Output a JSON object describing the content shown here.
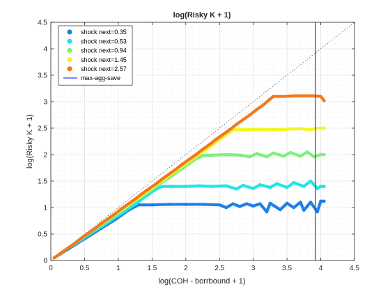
{
  "chart_data": {
    "type": "scatter",
    "title": "log(Risky K + 1)",
    "xlabel": "log(COH - borrbound + 1)",
    "ylabel": "log(Risky K + 1)",
    "xlim": [
      0,
      4.5
    ],
    "ylim": [
      0,
      4.5
    ],
    "xticks": [
      0,
      0.5,
      1,
      1.5,
      2,
      2.5,
      3,
      3.5,
      4,
      4.5
    ],
    "yticks": [
      0,
      0.5,
      1,
      1.5,
      2,
      2.5,
      3,
      3.5,
      4,
      4.5
    ],
    "xtick_labels": [
      "0",
      "0.5",
      "1",
      "1.5",
      "2",
      "2.5",
      "3",
      "3.5",
      "4",
      "4.5"
    ],
    "ytick_labels": [
      "0",
      "0.5",
      "1",
      "1.5",
      "2",
      "2.5",
      "3",
      "3.5",
      "4",
      "4.5"
    ],
    "grid": true,
    "legend_position": "top-left",
    "reference_line": {
      "type": "diagonal",
      "from": [
        0,
        0
      ],
      "to": [
        4.5,
        4.5
      ],
      "style": "dotted",
      "color": "#555555"
    },
    "vertical_line": {
      "name": "max-agg-save",
      "x": 3.92,
      "color": "#3b3bff"
    },
    "series": [
      {
        "name": "shock next=0.35",
        "color": "#1f7fe8",
        "points": [
          [
            0.05,
            0.05
          ],
          [
            0.15,
            0.13
          ],
          [
            0.25,
            0.21
          ],
          [
            0.35,
            0.29
          ],
          [
            0.45,
            0.37
          ],
          [
            0.55,
            0.45
          ],
          [
            0.65,
            0.53
          ],
          [
            0.75,
            0.61
          ],
          [
            0.85,
            0.69
          ],
          [
            0.95,
            0.77
          ],
          [
            1.05,
            0.86
          ],
          [
            1.15,
            0.95
          ],
          [
            1.25,
            1.02
          ],
          [
            1.3,
            1.05
          ],
          [
            1.5,
            1.05
          ],
          [
            1.75,
            1.06
          ],
          [
            2.0,
            1.06
          ],
          [
            2.25,
            1.06
          ],
          [
            2.5,
            1.05
          ],
          [
            2.6,
            1.0
          ],
          [
            2.7,
            1.07
          ],
          [
            2.8,
            1.02
          ],
          [
            2.9,
            1.07
          ],
          [
            3.0,
            1.03
          ],
          [
            3.1,
            1.07
          ],
          [
            3.2,
            0.92
          ],
          [
            3.25,
            1.08
          ],
          [
            3.4,
            0.96
          ],
          [
            3.5,
            1.08
          ],
          [
            3.6,
            1.0
          ],
          [
            3.7,
            1.1
          ],
          [
            3.75,
            0.95
          ],
          [
            3.85,
            1.1
          ],
          [
            3.95,
            0.92
          ],
          [
            4.0,
            1.12
          ],
          [
            4.05,
            1.12
          ]
        ]
      },
      {
        "name": "shock next=0.53",
        "color": "#22e5e5",
        "points": [
          [
            0.05,
            0.05
          ],
          [
            0.15,
            0.14
          ],
          [
            0.25,
            0.23
          ],
          [
            0.35,
            0.31
          ],
          [
            0.45,
            0.39
          ],
          [
            0.55,
            0.48
          ],
          [
            0.65,
            0.56
          ],
          [
            0.75,
            0.64
          ],
          [
            0.85,
            0.72
          ],
          [
            0.95,
            0.81
          ],
          [
            1.05,
            0.89
          ],
          [
            1.15,
            0.98
          ],
          [
            1.25,
            1.06
          ],
          [
            1.35,
            1.16
          ],
          [
            1.45,
            1.25
          ],
          [
            1.55,
            1.34
          ],
          [
            1.65,
            1.4
          ],
          [
            1.8,
            1.4
          ],
          [
            2.0,
            1.4
          ],
          [
            2.2,
            1.41
          ],
          [
            2.4,
            1.4
          ],
          [
            2.6,
            1.41
          ],
          [
            2.75,
            1.35
          ],
          [
            2.85,
            1.42
          ],
          [
            3.0,
            1.36
          ],
          [
            3.1,
            1.43
          ],
          [
            3.25,
            1.38
          ],
          [
            3.35,
            1.45
          ],
          [
            3.5,
            1.38
          ],
          [
            3.6,
            1.47
          ],
          [
            3.75,
            1.4
          ],
          [
            3.85,
            1.5
          ],
          [
            3.95,
            1.36
          ],
          [
            4.0,
            1.4
          ],
          [
            4.05,
            1.4
          ]
        ]
      },
      {
        "name": "shock next=0.94",
        "color": "#7df07d",
        "points": [
          [
            0.05,
            0.05
          ],
          [
            0.15,
            0.14
          ],
          [
            0.25,
            0.23
          ],
          [
            0.35,
            0.32
          ],
          [
            0.45,
            0.41
          ],
          [
            0.55,
            0.5
          ],
          [
            0.65,
            0.59
          ],
          [
            0.75,
            0.67
          ],
          [
            0.85,
            0.76
          ],
          [
            0.95,
            0.85
          ],
          [
            1.05,
            0.94
          ],
          [
            1.15,
            1.03
          ],
          [
            1.25,
            1.12
          ],
          [
            1.35,
            1.21
          ],
          [
            1.45,
            1.3
          ],
          [
            1.55,
            1.39
          ],
          [
            1.65,
            1.48
          ],
          [
            1.75,
            1.56
          ],
          [
            1.85,
            1.65
          ],
          [
            1.95,
            1.74
          ],
          [
            2.05,
            1.83
          ],
          [
            2.15,
            1.92
          ],
          [
            2.25,
            1.98
          ],
          [
            2.4,
            1.99
          ],
          [
            2.6,
            2.0
          ],
          [
            2.8,
            1.99
          ],
          [
            2.95,
            1.96
          ],
          [
            3.05,
            2.02
          ],
          [
            3.2,
            1.96
          ],
          [
            3.3,
            2.03
          ],
          [
            3.45,
            1.97
          ],
          [
            3.55,
            2.04
          ],
          [
            3.7,
            1.97
          ],
          [
            3.8,
            2.05
          ],
          [
            3.9,
            1.96
          ],
          [
            4.0,
            2.0
          ],
          [
            4.05,
            2.0
          ]
        ]
      },
      {
        "name": "shock next=1.45",
        "color": "#f5f51f",
        "points": [
          [
            0.05,
            0.05
          ],
          [
            0.15,
            0.14
          ],
          [
            0.25,
            0.23
          ],
          [
            0.35,
            0.32
          ],
          [
            0.45,
            0.42
          ],
          [
            0.55,
            0.51
          ],
          [
            0.65,
            0.6
          ],
          [
            0.75,
            0.69
          ],
          [
            0.85,
            0.78
          ],
          [
            0.95,
            0.87
          ],
          [
            1.05,
            0.96
          ],
          [
            1.15,
            1.05
          ],
          [
            1.25,
            1.14
          ],
          [
            1.35,
            1.23
          ],
          [
            1.45,
            1.32
          ],
          [
            1.55,
            1.42
          ],
          [
            1.65,
            1.51
          ],
          [
            1.75,
            1.6
          ],
          [
            1.85,
            1.69
          ],
          [
            1.95,
            1.78
          ],
          [
            2.05,
            1.87
          ],
          [
            2.15,
            1.96
          ],
          [
            2.25,
            2.05
          ],
          [
            2.35,
            2.14
          ],
          [
            2.45,
            2.24
          ],
          [
            2.55,
            2.33
          ],
          [
            2.65,
            2.42
          ],
          [
            2.7,
            2.47
          ],
          [
            2.9,
            2.47
          ],
          [
            3.1,
            2.48
          ],
          [
            3.3,
            2.47
          ],
          [
            3.5,
            2.48
          ],
          [
            3.7,
            2.49
          ],
          [
            3.85,
            2.47
          ],
          [
            3.95,
            2.5
          ],
          [
            4.05,
            2.5
          ]
        ]
      },
      {
        "name": "shock next=2.57",
        "color": "#f07820",
        "points": [
          [
            0.05,
            0.05
          ],
          [
            0.15,
            0.14
          ],
          [
            0.25,
            0.23
          ],
          [
            0.35,
            0.32
          ],
          [
            0.45,
            0.42
          ],
          [
            0.55,
            0.51
          ],
          [
            0.65,
            0.6
          ],
          [
            0.75,
            0.7
          ],
          [
            0.85,
            0.79
          ],
          [
            0.95,
            0.88
          ],
          [
            1.05,
            0.98
          ],
          [
            1.15,
            1.07
          ],
          [
            1.25,
            1.16
          ],
          [
            1.35,
            1.26
          ],
          [
            1.45,
            1.35
          ],
          [
            1.55,
            1.44
          ],
          [
            1.65,
            1.54
          ],
          [
            1.75,
            1.63
          ],
          [
            1.85,
            1.72
          ],
          [
            1.95,
            1.82
          ],
          [
            2.05,
            1.91
          ],
          [
            2.15,
            2.0
          ],
          [
            2.25,
            2.1
          ],
          [
            2.35,
            2.19
          ],
          [
            2.45,
            2.29
          ],
          [
            2.55,
            2.38
          ],
          [
            2.65,
            2.47
          ],
          [
            2.75,
            2.57
          ],
          [
            2.85,
            2.66
          ],
          [
            2.95,
            2.75
          ],
          [
            3.05,
            2.85
          ],
          [
            3.15,
            2.94
          ],
          [
            3.25,
            3.05
          ],
          [
            3.3,
            3.1
          ],
          [
            3.45,
            3.1
          ],
          [
            3.6,
            3.11
          ],
          [
            3.75,
            3.11
          ],
          [
            3.9,
            3.11
          ],
          [
            4.0,
            3.1
          ],
          [
            4.05,
            3.02
          ]
        ]
      }
    ]
  }
}
